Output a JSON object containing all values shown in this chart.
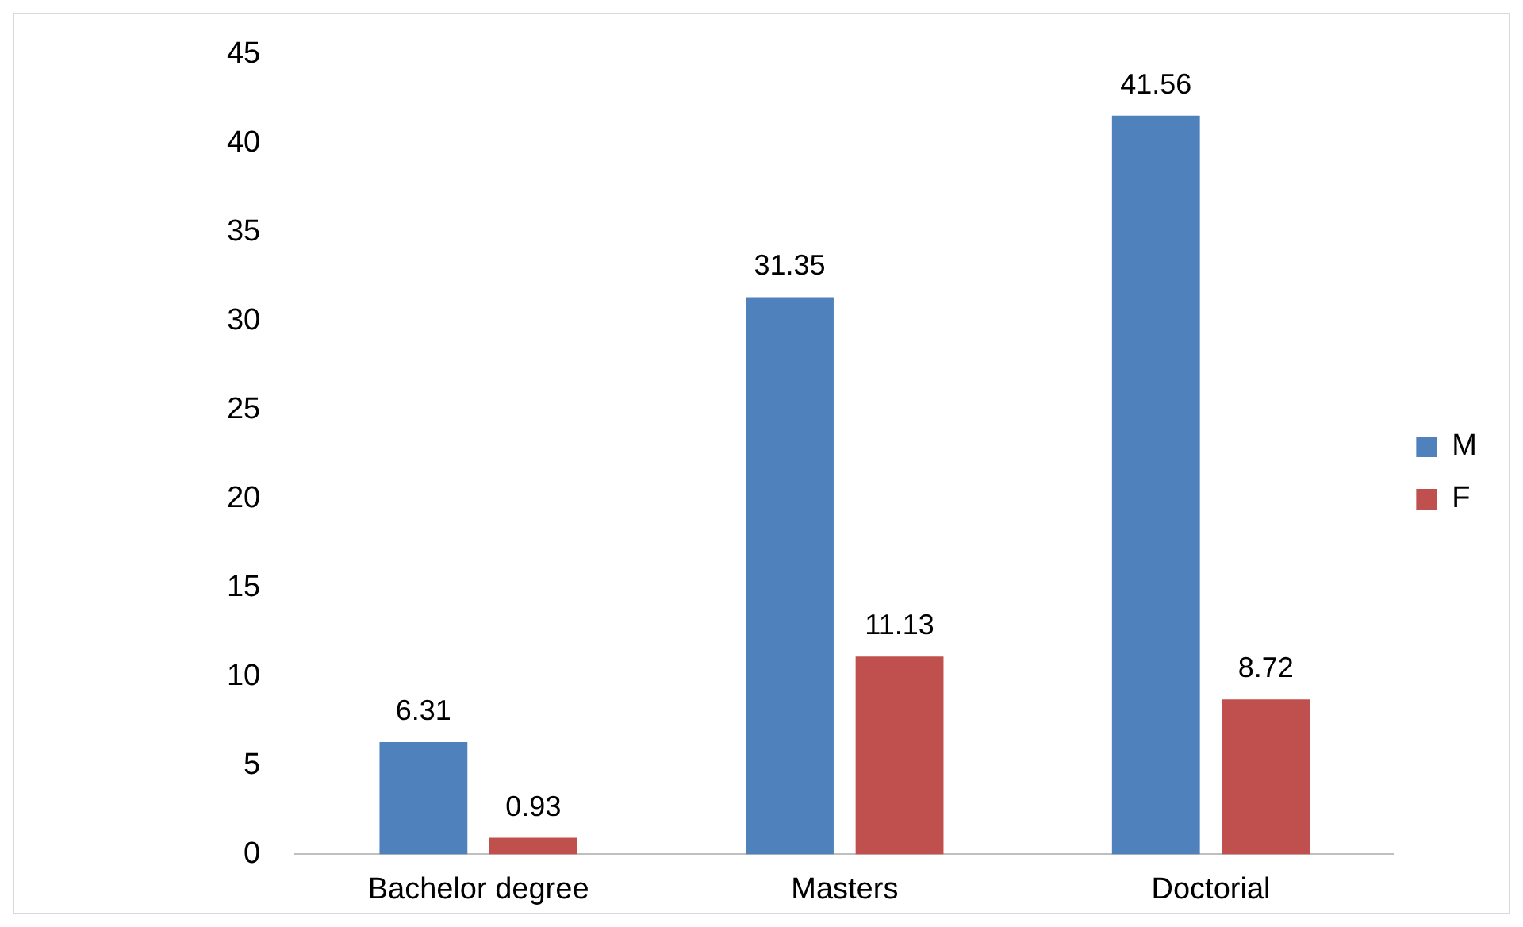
{
  "chart_data": {
    "type": "bar",
    "categories": [
      "Bachelor degree",
      "Masters",
      "Doctorial"
    ],
    "series": [
      {
        "name": "M",
        "color": "#4f81bd",
        "values": [
          6.31,
          31.35,
          41.56
        ]
      },
      {
        "name": "F",
        "color": "#c0504d",
        "values": [
          0.93,
          11.13,
          8.72
        ]
      }
    ],
    "ylim": [
      0,
      45
    ],
    "yticks": [
      0,
      5,
      10,
      15,
      20,
      25,
      30,
      35,
      40,
      45
    ],
    "grid": false,
    "legend": "right",
    "data_labels": true
  }
}
